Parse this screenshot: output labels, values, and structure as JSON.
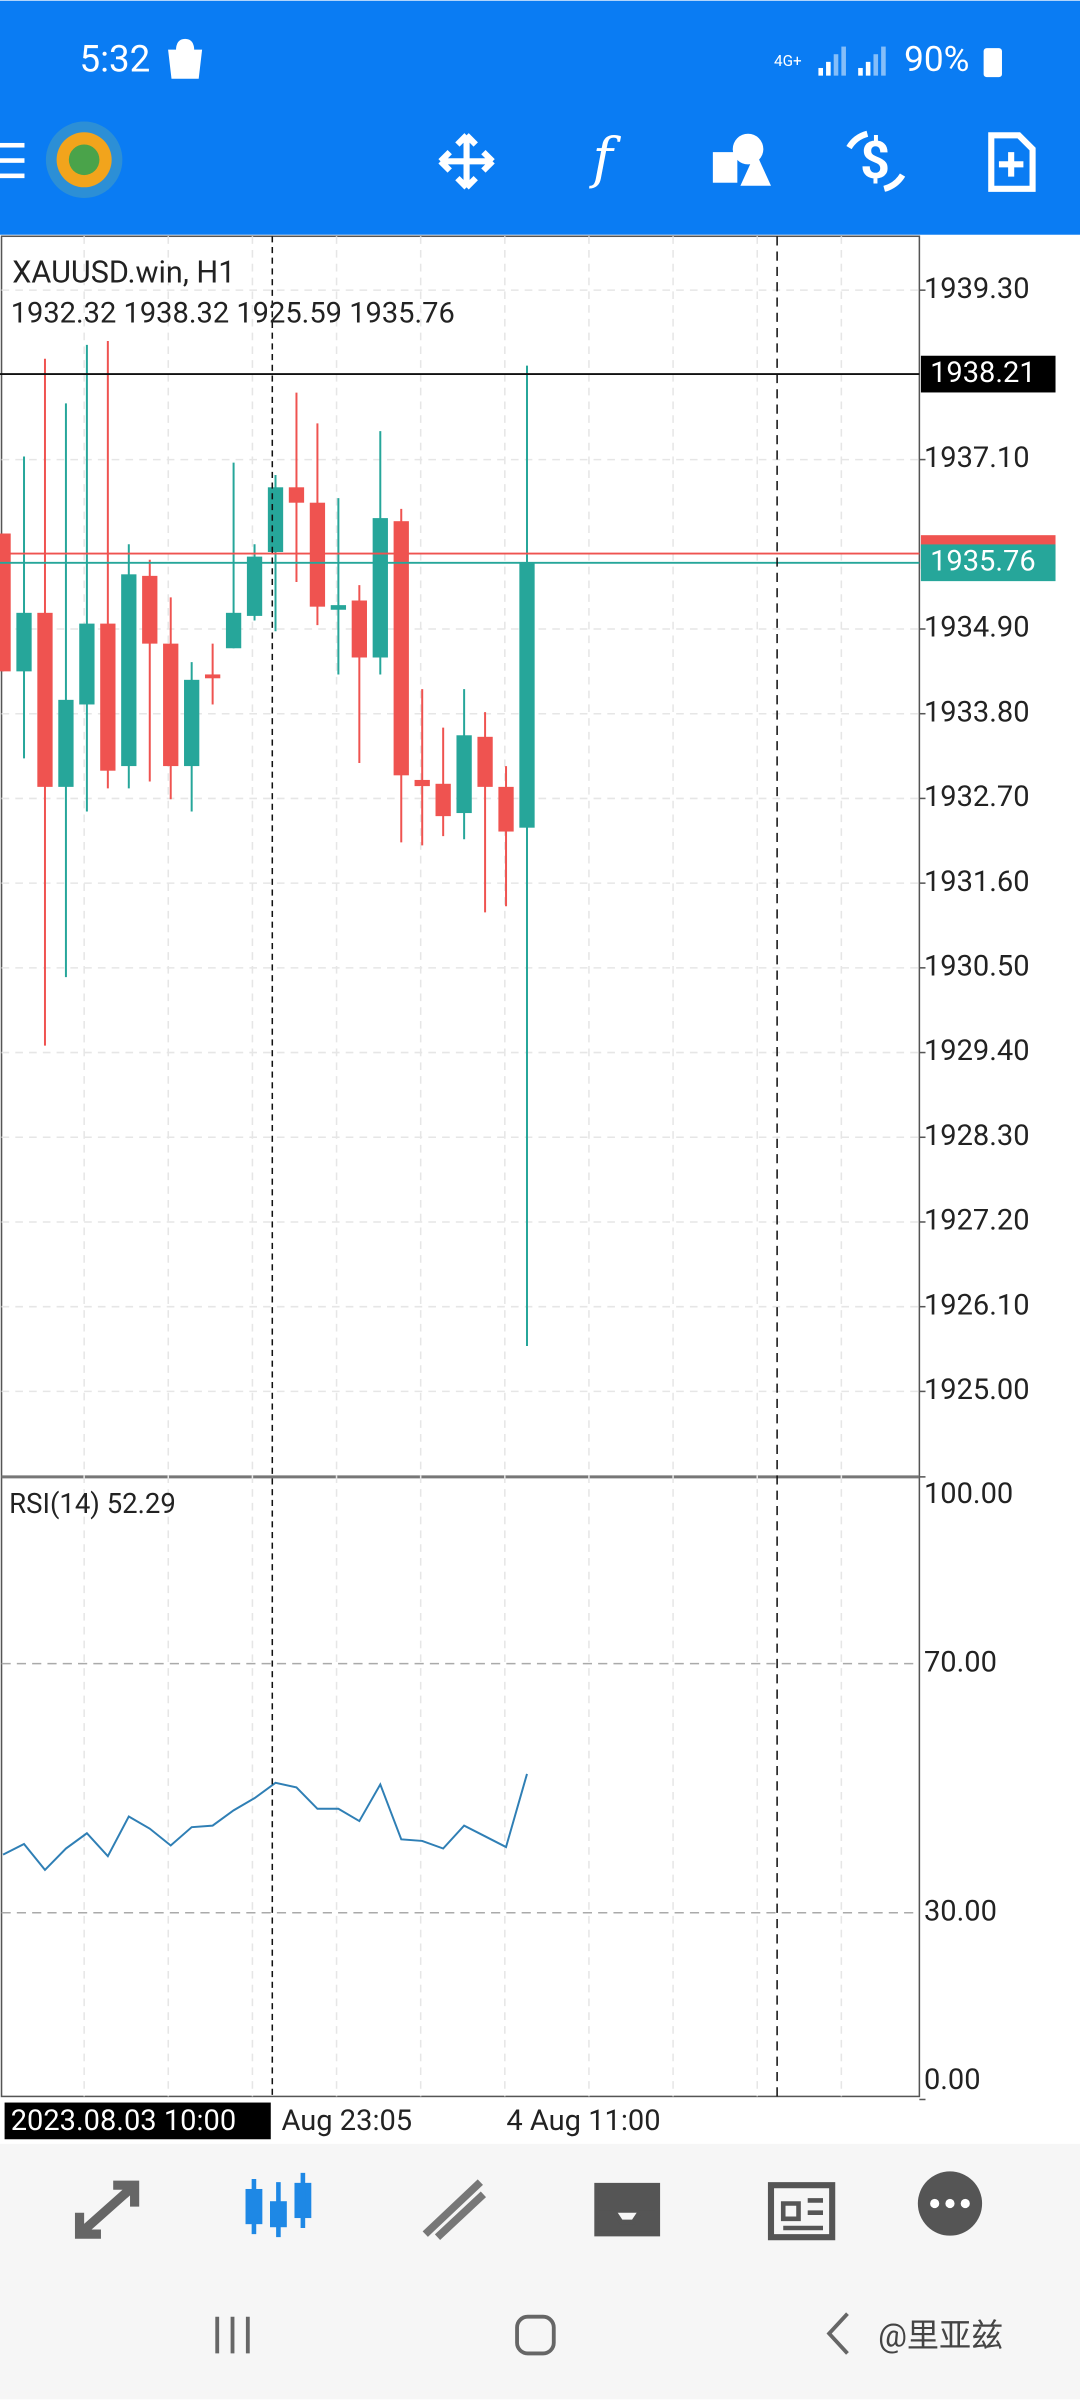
{
  "status_bar": {
    "time": "5:32",
    "network": "4G+",
    "battery": "90%"
  },
  "chart": {
    "type": "candlestick",
    "symbol": "XAUUSD.win, H1",
    "bull_color": "#26a69a",
    "bear_color": "#ef5350",
    "ylim": [
      1923.89,
      1939.98
    ],
    "yticks": [
      {
        "value": 1939.3,
        "label": "1939.30"
      },
      {
        "value": 1937.1,
        "label": "1937.10"
      },
      {
        "value": 1934.9,
        "label": "1934.90"
      },
      {
        "value": 1933.8,
        "label": "1933.80"
      },
      {
        "value": 1932.7,
        "label": "1932.70"
      },
      {
        "value": 1931.6,
        "label": "1931.60"
      },
      {
        "value": 1930.5,
        "label": "1930.50"
      },
      {
        "value": 1929.4,
        "label": "1929.40"
      },
      {
        "value": 1928.3,
        "label": "1928.30"
      },
      {
        "value": 1927.2,
        "label": "1927.20"
      },
      {
        "value": 1926.1,
        "label": "1926.10"
      },
      {
        "value": 1925,
        "label": "1925.00"
      }
    ],
    "high_line": 1938.21,
    "ask_line": 1935.88,
    "candles": [
      {
        "o": 1936.14,
        "h": 1936.14,
        "l": 1934.35,
        "c": 1934.35
      },
      {
        "o": 1934.35,
        "h": 1937.14,
        "l": 1933.22,
        "c": 1935.11
      },
      {
        "o": 1935.11,
        "h": 1938.41,
        "l": 1929.49,
        "c": 1932.85
      },
      {
        "o": 1932.85,
        "h": 1937.83,
        "l": 1930.38,
        "c": 1933.98
      },
      {
        "o": 1933.92,
        "h": 1938.59,
        "l": 1932.53,
        "c": 1934.97
      },
      {
        "o": 1934.97,
        "h": 1938.64,
        "l": 1932.83,
        "c": 1933.06
      },
      {
        "o": 1933.12,
        "h": 1936.0,
        "l": 1932.83,
        "c": 1935.61
      },
      {
        "o": 1935.59,
        "h": 1935.8,
        "l": 1932.92,
        "c": 1934.71
      },
      {
        "o": 1934.71,
        "h": 1935.31,
        "l": 1932.69,
        "c": 1933.12
      },
      {
        "o": 1933.12,
        "h": 1934.47,
        "l": 1932.53,
        "c": 1934.24
      },
      {
        "o": 1934.31,
        "h": 1934.71,
        "l": 1933.92,
        "c": 1934.26
      },
      {
        "o": 1934.65,
        "h": 1937.06,
        "l": 1934.65,
        "c": 1935.11
      },
      {
        "o": 1935.07,
        "h": 1936.0,
        "l": 1935.01,
        "c": 1935.84
      },
      {
        "o": 1935.9,
        "h": 1936.9,
        "l": 1934.87,
        "c": 1936.74
      },
      {
        "o": 1936.74,
        "h": 1937.97,
        "l": 1935.51,
        "c": 1936.54
      },
      {
        "o": 1936.54,
        "h": 1937.57,
        "l": 1934.95,
        "c": 1935.19
      },
      {
        "o": 1935.15,
        "h": 1936.6,
        "l": 1934.31,
        "c": 1935.21
      },
      {
        "o": 1935.27,
        "h": 1935.47,
        "l": 1933.16,
        "c": 1934.53
      },
      {
        "o": 1934.53,
        "h": 1937.47,
        "l": 1934.31,
        "c": 1936.34
      },
      {
        "o": 1936.3,
        "h": 1936.46,
        "l": 1932.13,
        "c": 1933.0
      },
      {
        "o": 1932.94,
        "h": 1934.12,
        "l": 1932.09,
        "c": 1932.86
      },
      {
        "o": 1932.89,
        "h": 1933.62,
        "l": 1932.21,
        "c": 1932.47
      },
      {
        "o": 1932.51,
        "h": 1934.12,
        "l": 1932.17,
        "c": 1933.52
      },
      {
        "o": 1933.5,
        "h": 1933.82,
        "l": 1931.22,
        "c": 1932.85
      },
      {
        "o": 1932.85,
        "h": 1933.12,
        "l": 1931.3,
        "c": 1932.27
      },
      {
        "o": 1932.32,
        "h": 1938.32,
        "l": 1925.59,
        "c": 1935.76
      }
    ],
    "rsi": {
      "label": "RSI(14)",
      "color": "#2f7fb5",
      "ylim": [
        0,
        100
      ],
      "yticks": [
        {
          "value": 100,
          "label": "100.00"
        },
        {
          "value": 70,
          "label": "70.00"
        },
        {
          "value": 30,
          "label": "30.00"
        },
        {
          "value": 0,
          "label": "0.00"
        }
      ],
      "values": [
        39.33,
        41.04,
        36.87,
        40.31,
        42.76,
        39.08,
        45.46,
        43.5,
        40.8,
        43.74,
        43.99,
        46.44,
        48.4,
        50.86,
        50.12,
        46.69,
        46.69,
        44.72,
        50.61,
        41.78,
        41.53,
        40.31,
        43.99,
        42.27,
        40.55,
        52.29
      ]
    },
    "time_labels": [
      "2023.08.03 10:00",
      "Aug 23:05",
      "4 Aug 11:00"
    ]
  },
  "watermark": "@里亚兹"
}
